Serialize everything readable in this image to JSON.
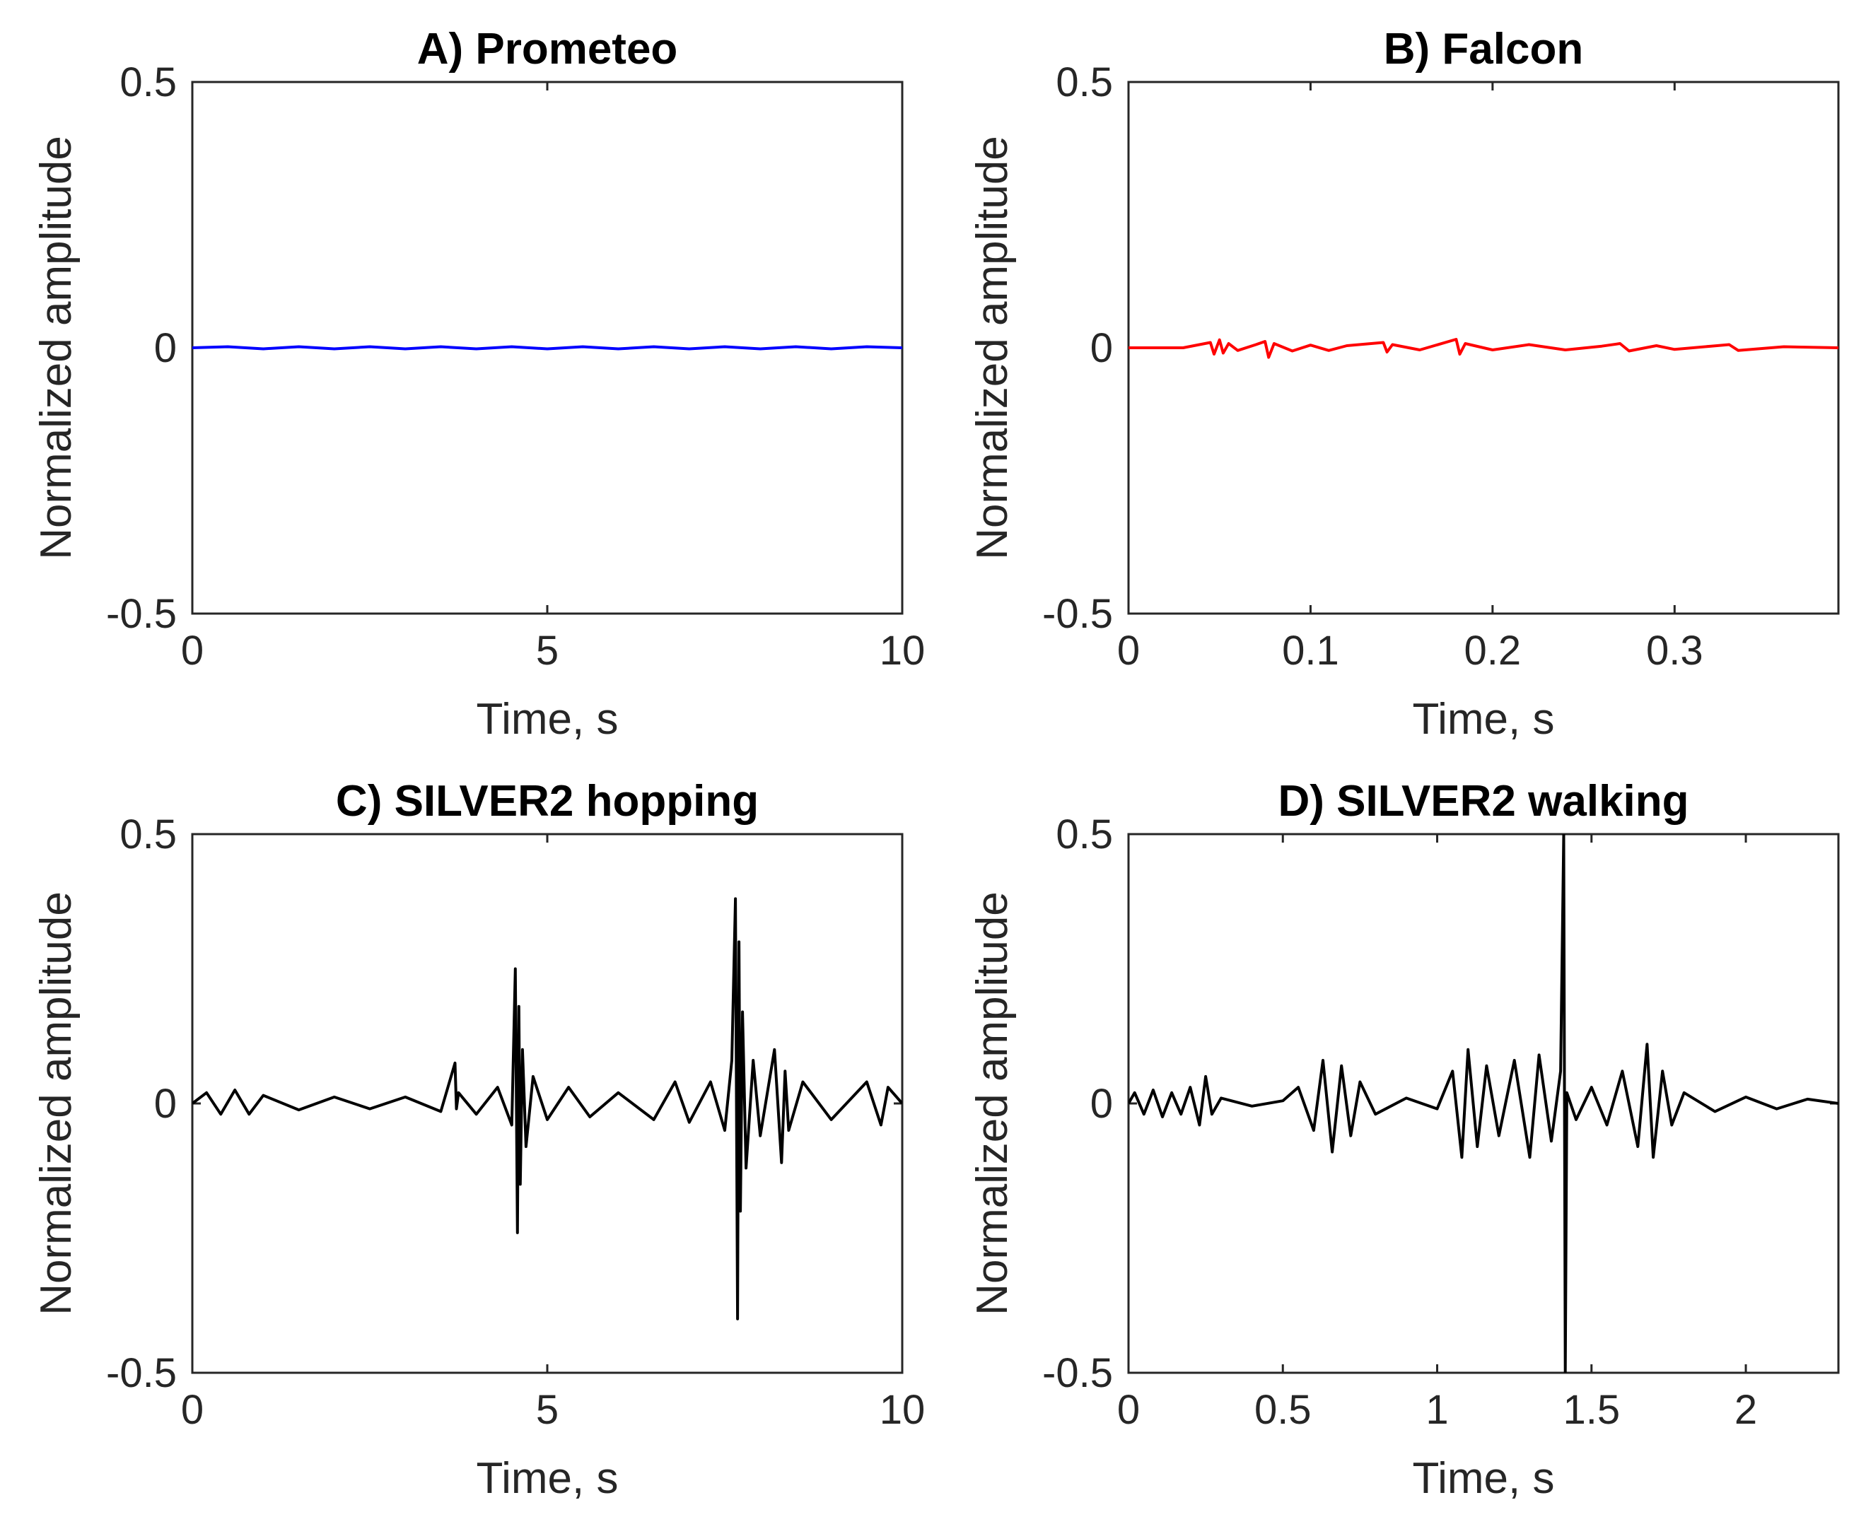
{
  "figure": {
    "layout": "2x2 grid"
  },
  "chart_data": [
    {
      "type": "line",
      "panel": "A",
      "title": "A) Prometeo",
      "xlabel": "Time, s",
      "ylabel": "Normalized amplitude",
      "xlim": [
        0,
        10
      ],
      "ylim": [
        -0.5,
        0.5
      ],
      "xticks": [
        0,
        5,
        10
      ],
      "xtick_labels": [
        "0",
        "5",
        "10"
      ],
      "yticks": [
        -0.5,
        0,
        0.5
      ],
      "ytick_labels": [
        "-0.5",
        "0",
        "0.5"
      ],
      "series": [
        {
          "name": "Prometeo signal",
          "color": "#0000ff",
          "x": [
            0,
            0.5,
            1,
            1.5,
            2,
            2.5,
            3,
            3.5,
            4,
            4.5,
            5,
            5.5,
            6,
            6.5,
            7,
            7.5,
            8,
            8.5,
            9,
            9.5,
            10
          ],
          "y": [
            0,
            0.002,
            -0.002,
            0.002,
            -0.002,
            0.002,
            -0.002,
            0.002,
            -0.002,
            0.002,
            -0.002,
            0.002,
            -0.002,
            0.002,
            -0.002,
            0.002,
            -0.002,
            0.002,
            -0.002,
            0.002,
            0
          ]
        }
      ]
    },
    {
      "type": "line",
      "panel": "B",
      "title": "B) Falcon",
      "xlabel": "Time, s",
      "ylabel": "Normalized amplitude",
      "xlim": [
        0,
        0.39
      ],
      "ylim": [
        -0.5,
        0.5
      ],
      "xticks": [
        0,
        0.1,
        0.2,
        0.3
      ],
      "xtick_labels": [
        "0",
        "0.1",
        "0.2",
        "0.3"
      ],
      "yticks": [
        -0.5,
        0,
        0.5
      ],
      "ytick_labels": [
        "-0.5",
        "0",
        "0.5"
      ],
      "series": [
        {
          "name": "Falcon signal",
          "color": "#ff0000",
          "x": [
            0,
            0.03,
            0.045,
            0.047,
            0.05,
            0.052,
            0.055,
            0.06,
            0.07,
            0.075,
            0.077,
            0.08,
            0.09,
            0.1,
            0.11,
            0.12,
            0.14,
            0.142,
            0.145,
            0.16,
            0.18,
            0.182,
            0.185,
            0.2,
            0.22,
            0.24,
            0.26,
            0.27,
            0.275,
            0.29,
            0.3,
            0.32,
            0.33,
            0.335,
            0.36,
            0.39
          ],
          "y": [
            0,
            0,
            0.01,
            -0.012,
            0.015,
            -0.01,
            0.008,
            -0.005,
            0.006,
            0.012,
            -0.018,
            0.008,
            -0.006,
            0.005,
            -0.005,
            0.004,
            0.01,
            -0.008,
            0.006,
            -0.004,
            0.016,
            -0.012,
            0.008,
            -0.004,
            0.006,
            -0.004,
            0.003,
            0.008,
            -0.006,
            0.004,
            -0.003,
            0.003,
            0.006,
            -0.005,
            0.002,
            0
          ]
        }
      ]
    },
    {
      "type": "line",
      "panel": "C",
      "title": "C) SILVER2 hopping",
      "xlabel": "Time, s",
      "ylabel": "Normalized amplitude",
      "xlim": [
        0,
        10
      ],
      "ylim": [
        -0.5,
        0.5
      ],
      "xticks": [
        0,
        5,
        10
      ],
      "xtick_labels": [
        "0",
        "5",
        "10"
      ],
      "yticks": [
        -0.5,
        0,
        0.5
      ],
      "ytick_labels": [
        "-0.5",
        "0",
        "0.5"
      ],
      "series": [
        {
          "name": "SILVER2 hopping signal",
          "color": "#000000",
          "x": [
            0,
            0.2,
            0.4,
            0.6,
            0.8,
            1.0,
            1.5,
            2.0,
            2.5,
            3.0,
            3.5,
            3.7,
            3.72,
            3.75,
            4.0,
            4.3,
            4.5,
            4.55,
            4.58,
            4.6,
            4.62,
            4.65,
            4.7,
            4.8,
            5.0,
            5.3,
            5.6,
            6.0,
            6.5,
            6.8,
            7.0,
            7.3,
            7.5,
            7.6,
            7.65,
            7.68,
            7.7,
            7.72,
            7.75,
            7.8,
            7.9,
            8.0,
            8.2,
            8.3,
            8.35,
            8.4,
            8.6,
            9.0,
            9.5,
            9.7,
            9.8,
            10.0
          ],
          "y": [
            0,
            0.02,
            -0.02,
            0.025,
            -0.02,
            0.015,
            -0.012,
            0.012,
            -0.01,
            0.012,
            -0.015,
            0.075,
            -0.01,
            0.02,
            -0.02,
            0.03,
            -0.04,
            0.25,
            -0.24,
            0.18,
            -0.15,
            0.1,
            -0.08,
            0.05,
            -0.03,
            0.03,
            -0.025,
            0.02,
            -0.03,
            0.04,
            -0.035,
            0.04,
            -0.05,
            0.08,
            0.38,
            -0.4,
            0.3,
            -0.2,
            0.17,
            -0.12,
            0.08,
            -0.06,
            0.1,
            -0.11,
            0.06,
            -0.05,
            0.04,
            -0.03,
            0.04,
            -0.04,
            0.03,
            0
          ]
        }
      ]
    },
    {
      "type": "line",
      "panel": "D",
      "title": "D) SILVER2 walking",
      "xlabel": "Time, s",
      "ylabel": "Normalized amplitude",
      "xlim": [
        0,
        2.3
      ],
      "ylim": [
        -0.5,
        0.5
      ],
      "xticks": [
        0,
        0.5,
        1,
        1.5,
        2
      ],
      "xtick_labels": [
        "0",
        "0.5",
        "1",
        "1.5",
        "2"
      ],
      "yticks": [
        -0.5,
        0,
        0.5
      ],
      "ytick_labels": [
        "-0.5",
        "0",
        "0.5"
      ],
      "series": [
        {
          "name": "SILVER2 walking signal",
          "color": "#000000",
          "x": [
            0,
            0.02,
            0.05,
            0.08,
            0.11,
            0.14,
            0.17,
            0.2,
            0.23,
            0.25,
            0.27,
            0.3,
            0.4,
            0.5,
            0.55,
            0.6,
            0.63,
            0.66,
            0.69,
            0.72,
            0.75,
            0.8,
            0.9,
            1.0,
            1.05,
            1.08,
            1.1,
            1.13,
            1.16,
            1.2,
            1.25,
            1.3,
            1.33,
            1.37,
            1.4,
            1.41,
            1.415,
            1.42,
            1.45,
            1.5,
            1.55,
            1.6,
            1.65,
            1.68,
            1.7,
            1.73,
            1.76,
            1.8,
            1.9,
            2.0,
            2.1,
            2.2,
            2.3
          ],
          "y": [
            0,
            0.02,
            -0.02,
            0.025,
            -0.025,
            0.02,
            -0.02,
            0.03,
            -0.04,
            0.05,
            -0.02,
            0.01,
            -0.005,
            0.005,
            0.03,
            -0.05,
            0.08,
            -0.09,
            0.07,
            -0.06,
            0.04,
            -0.02,
            0.01,
            -0.01,
            0.06,
            -0.1,
            0.1,
            -0.08,
            0.07,
            -0.06,
            0.08,
            -0.1,
            0.09,
            -0.07,
            0.06,
            0.5,
            -0.5,
            0.02,
            -0.03,
            0.03,
            -0.04,
            0.06,
            -0.08,
            0.11,
            -0.1,
            0.06,
            -0.04,
            0.02,
            -0.015,
            0.012,
            -0.01,
            0.008,
            0
          ]
        }
      ]
    }
  ]
}
